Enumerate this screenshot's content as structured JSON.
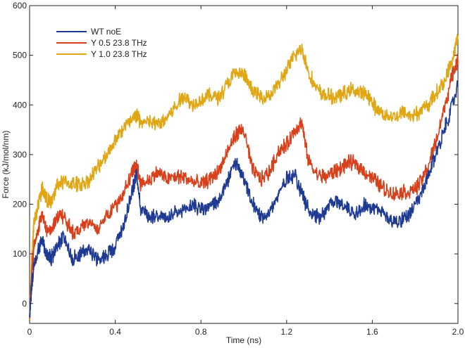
{
  "chart_data": {
    "type": "line",
    "xlabel": "Time (ns)",
    "ylabel": "Force (kJ/mol/nm)",
    "xlim": [
      0,
      2.0
    ],
    "ylim": [
      -40,
      600
    ],
    "xticks": [
      "0",
      "0.4",
      "0.8",
      "1.2",
      "1.6",
      "2.0"
    ],
    "xtick_values": [
      0,
      0.4,
      0.8,
      1.2,
      1.6,
      2.0
    ],
    "yticks": [
      "0",
      "100",
      "200",
      "300",
      "400",
      "500",
      "600"
    ],
    "ytick_values": [
      0,
      100,
      200,
      300,
      400,
      500,
      600
    ],
    "grid": false,
    "legend_position": "top-left",
    "series": [
      {
        "name": "WT noE",
        "color": "#1f3a93",
        "x": [
          0,
          0.01,
          0.02,
          0.04,
          0.06,
          0.08,
          0.1,
          0.13,
          0.16,
          0.2,
          0.24,
          0.28,
          0.32,
          0.36,
          0.4,
          0.44,
          0.48,
          0.5,
          0.52,
          0.56,
          0.6,
          0.64,
          0.68,
          0.72,
          0.76,
          0.8,
          0.84,
          0.88,
          0.92,
          0.96,
          1.0,
          1.04,
          1.08,
          1.12,
          1.16,
          1.2,
          1.24,
          1.28,
          1.32,
          1.36,
          1.4,
          1.44,
          1.48,
          1.52,
          1.56,
          1.6,
          1.64,
          1.68,
          1.72,
          1.76,
          1.8,
          1.84,
          1.88,
          1.92,
          1.96,
          2.0
        ],
        "y": [
          -30,
          40,
          70,
          110,
          130,
          95,
          90,
          115,
          135,
          90,
          100,
          110,
          85,
          100,
          115,
          160,
          230,
          260,
          190,
          175,
          180,
          170,
          180,
          185,
          200,
          190,
          195,
          205,
          240,
          285,
          250,
          200,
          175,
          185,
          215,
          255,
          260,
          210,
          180,
          175,
          200,
          205,
          195,
          180,
          200,
          190,
          185,
          170,
          165,
          175,
          195,
          230,
          280,
          330,
          380,
          440
        ]
      },
      {
        "name": "Y 0.5 23.8 THz",
        "color": "#d7401b",
        "x": [
          0,
          0.01,
          0.02,
          0.04,
          0.06,
          0.08,
          0.1,
          0.13,
          0.16,
          0.2,
          0.24,
          0.28,
          0.32,
          0.36,
          0.4,
          0.44,
          0.48,
          0.5,
          0.52,
          0.56,
          0.6,
          0.64,
          0.68,
          0.72,
          0.76,
          0.8,
          0.84,
          0.88,
          0.92,
          0.96,
          1.0,
          1.04,
          1.08,
          1.12,
          1.16,
          1.2,
          1.24,
          1.27,
          1.3,
          1.34,
          1.38,
          1.42,
          1.46,
          1.5,
          1.54,
          1.58,
          1.62,
          1.66,
          1.7,
          1.74,
          1.78,
          1.82,
          1.86,
          1.9,
          1.94,
          1.98,
          2.0
        ],
        "y": [
          -30,
          60,
          110,
          150,
          180,
          145,
          150,
          175,
          175,
          145,
          150,
          165,
          150,
          180,
          195,
          225,
          265,
          280,
          240,
          250,
          265,
          250,
          255,
          255,
          245,
          240,
          250,
          265,
          300,
          340,
          350,
          270,
          250,
          265,
          305,
          320,
          350,
          365,
          290,
          260,
          255,
          265,
          275,
          285,
          275,
          260,
          245,
          230,
          220,
          225,
          225,
          240,
          275,
          330,
          400,
          470,
          490
        ]
      },
      {
        "name": "Y 1.0 23.8 THz",
        "color": "#e0a614",
        "x": [
          0,
          0.01,
          0.02,
          0.04,
          0.06,
          0.08,
          0.1,
          0.13,
          0.16,
          0.2,
          0.24,
          0.28,
          0.32,
          0.36,
          0.4,
          0.44,
          0.48,
          0.5,
          0.52,
          0.56,
          0.6,
          0.64,
          0.68,
          0.72,
          0.76,
          0.8,
          0.84,
          0.88,
          0.92,
          0.96,
          1.0,
          1.04,
          1.08,
          1.12,
          1.16,
          1.2,
          1.24,
          1.27,
          1.3,
          1.34,
          1.38,
          1.42,
          1.46,
          1.5,
          1.54,
          1.58,
          1.62,
          1.66,
          1.7,
          1.74,
          1.78,
          1.82,
          1.86,
          1.9,
          1.94,
          1.98,
          2.0
        ],
        "y": [
          -30,
          90,
          160,
          200,
          235,
          210,
          200,
          240,
          245,
          240,
          240,
          250,
          275,
          300,
          330,
          355,
          370,
          380,
          365,
          365,
          360,
          375,
          395,
          420,
          400,
          410,
          420,
          415,
          440,
          465,
          460,
          430,
          415,
          420,
          440,
          470,
          500,
          515,
          470,
          430,
          420,
          415,
          420,
          430,
          425,
          420,
          390,
          380,
          375,
          385,
          380,
          385,
          400,
          425,
          450,
          500,
          540
        ]
      }
    ]
  }
}
